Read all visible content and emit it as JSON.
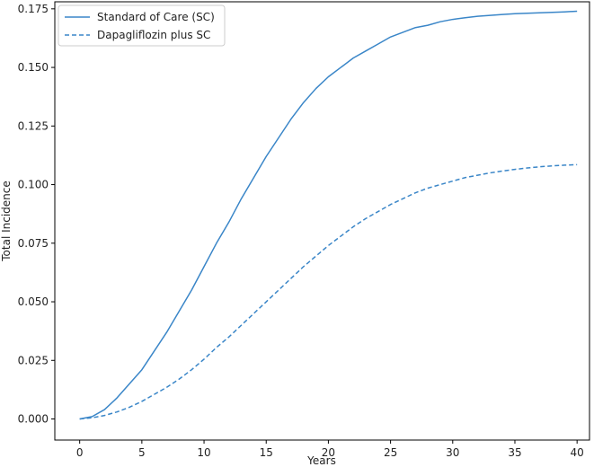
{
  "chart_data": {
    "type": "line",
    "title": "",
    "xlabel": "Years",
    "ylabel": "Total Incidence",
    "xlim": [
      -2,
      41
    ],
    "ylim": [
      -0.009,
      0.178
    ],
    "xticks": [
      0,
      5,
      10,
      15,
      20,
      25,
      30,
      35,
      40
    ],
    "yticks": [
      0.0,
      0.025,
      0.05,
      0.075,
      0.1,
      0.125,
      0.15,
      0.175
    ],
    "xtick_labels": [
      "0",
      "5",
      "10",
      "15",
      "20",
      "25",
      "30",
      "35",
      "40"
    ],
    "ytick_labels": [
      "0.000",
      "0.025",
      "0.050",
      "0.075",
      "0.100",
      "0.125",
      "0.150",
      "0.175"
    ],
    "grid": false,
    "legend_position": "top-left",
    "color": "#3a86c8",
    "series": [
      {
        "name": "Standard of Care (SC)",
        "style": "solid",
        "x": [
          0,
          1,
          2,
          3,
          4,
          5,
          6,
          7,
          8,
          9,
          10,
          11,
          12,
          13,
          14,
          15,
          16,
          17,
          18,
          19,
          20,
          21,
          22,
          23,
          24,
          25,
          26,
          27,
          28,
          29,
          30,
          31,
          32,
          33,
          34,
          35,
          36,
          37,
          38,
          39,
          40
        ],
        "y": [
          0.0,
          0.001,
          0.004,
          0.009,
          0.015,
          0.021,
          0.029,
          0.037,
          0.046,
          0.055,
          0.065,
          0.075,
          0.084,
          0.094,
          0.103,
          0.112,
          0.12,
          0.128,
          0.135,
          0.141,
          0.146,
          0.15,
          0.154,
          0.157,
          0.16,
          0.163,
          0.165,
          0.167,
          0.168,
          0.1695,
          0.1705,
          0.1712,
          0.1718,
          0.1722,
          0.1726,
          0.1729,
          0.1731,
          0.1733,
          0.1735,
          0.1737,
          0.174
        ]
      },
      {
        "name": "Dapagliflozin plus SC",
        "style": "dashed",
        "x": [
          0,
          1,
          2,
          3,
          4,
          5,
          6,
          7,
          8,
          9,
          10,
          11,
          12,
          13,
          14,
          15,
          16,
          17,
          18,
          19,
          20,
          21,
          22,
          23,
          24,
          25,
          26,
          27,
          28,
          29,
          30,
          31,
          32,
          33,
          34,
          35,
          36,
          37,
          38,
          39,
          40
        ],
        "y": [
          0.0,
          0.0005,
          0.0015,
          0.003,
          0.005,
          0.0075,
          0.0105,
          0.0135,
          0.017,
          0.021,
          0.0255,
          0.0305,
          0.035,
          0.04,
          0.045,
          0.05,
          0.055,
          0.06,
          0.065,
          0.0695,
          0.074,
          0.078,
          0.082,
          0.0855,
          0.0885,
          0.0915,
          0.094,
          0.0965,
          0.0985,
          0.1,
          0.1015,
          0.103,
          0.104,
          0.105,
          0.1058,
          0.1065,
          0.1071,
          0.1076,
          0.108,
          0.1083,
          0.1085
        ]
      }
    ]
  }
}
